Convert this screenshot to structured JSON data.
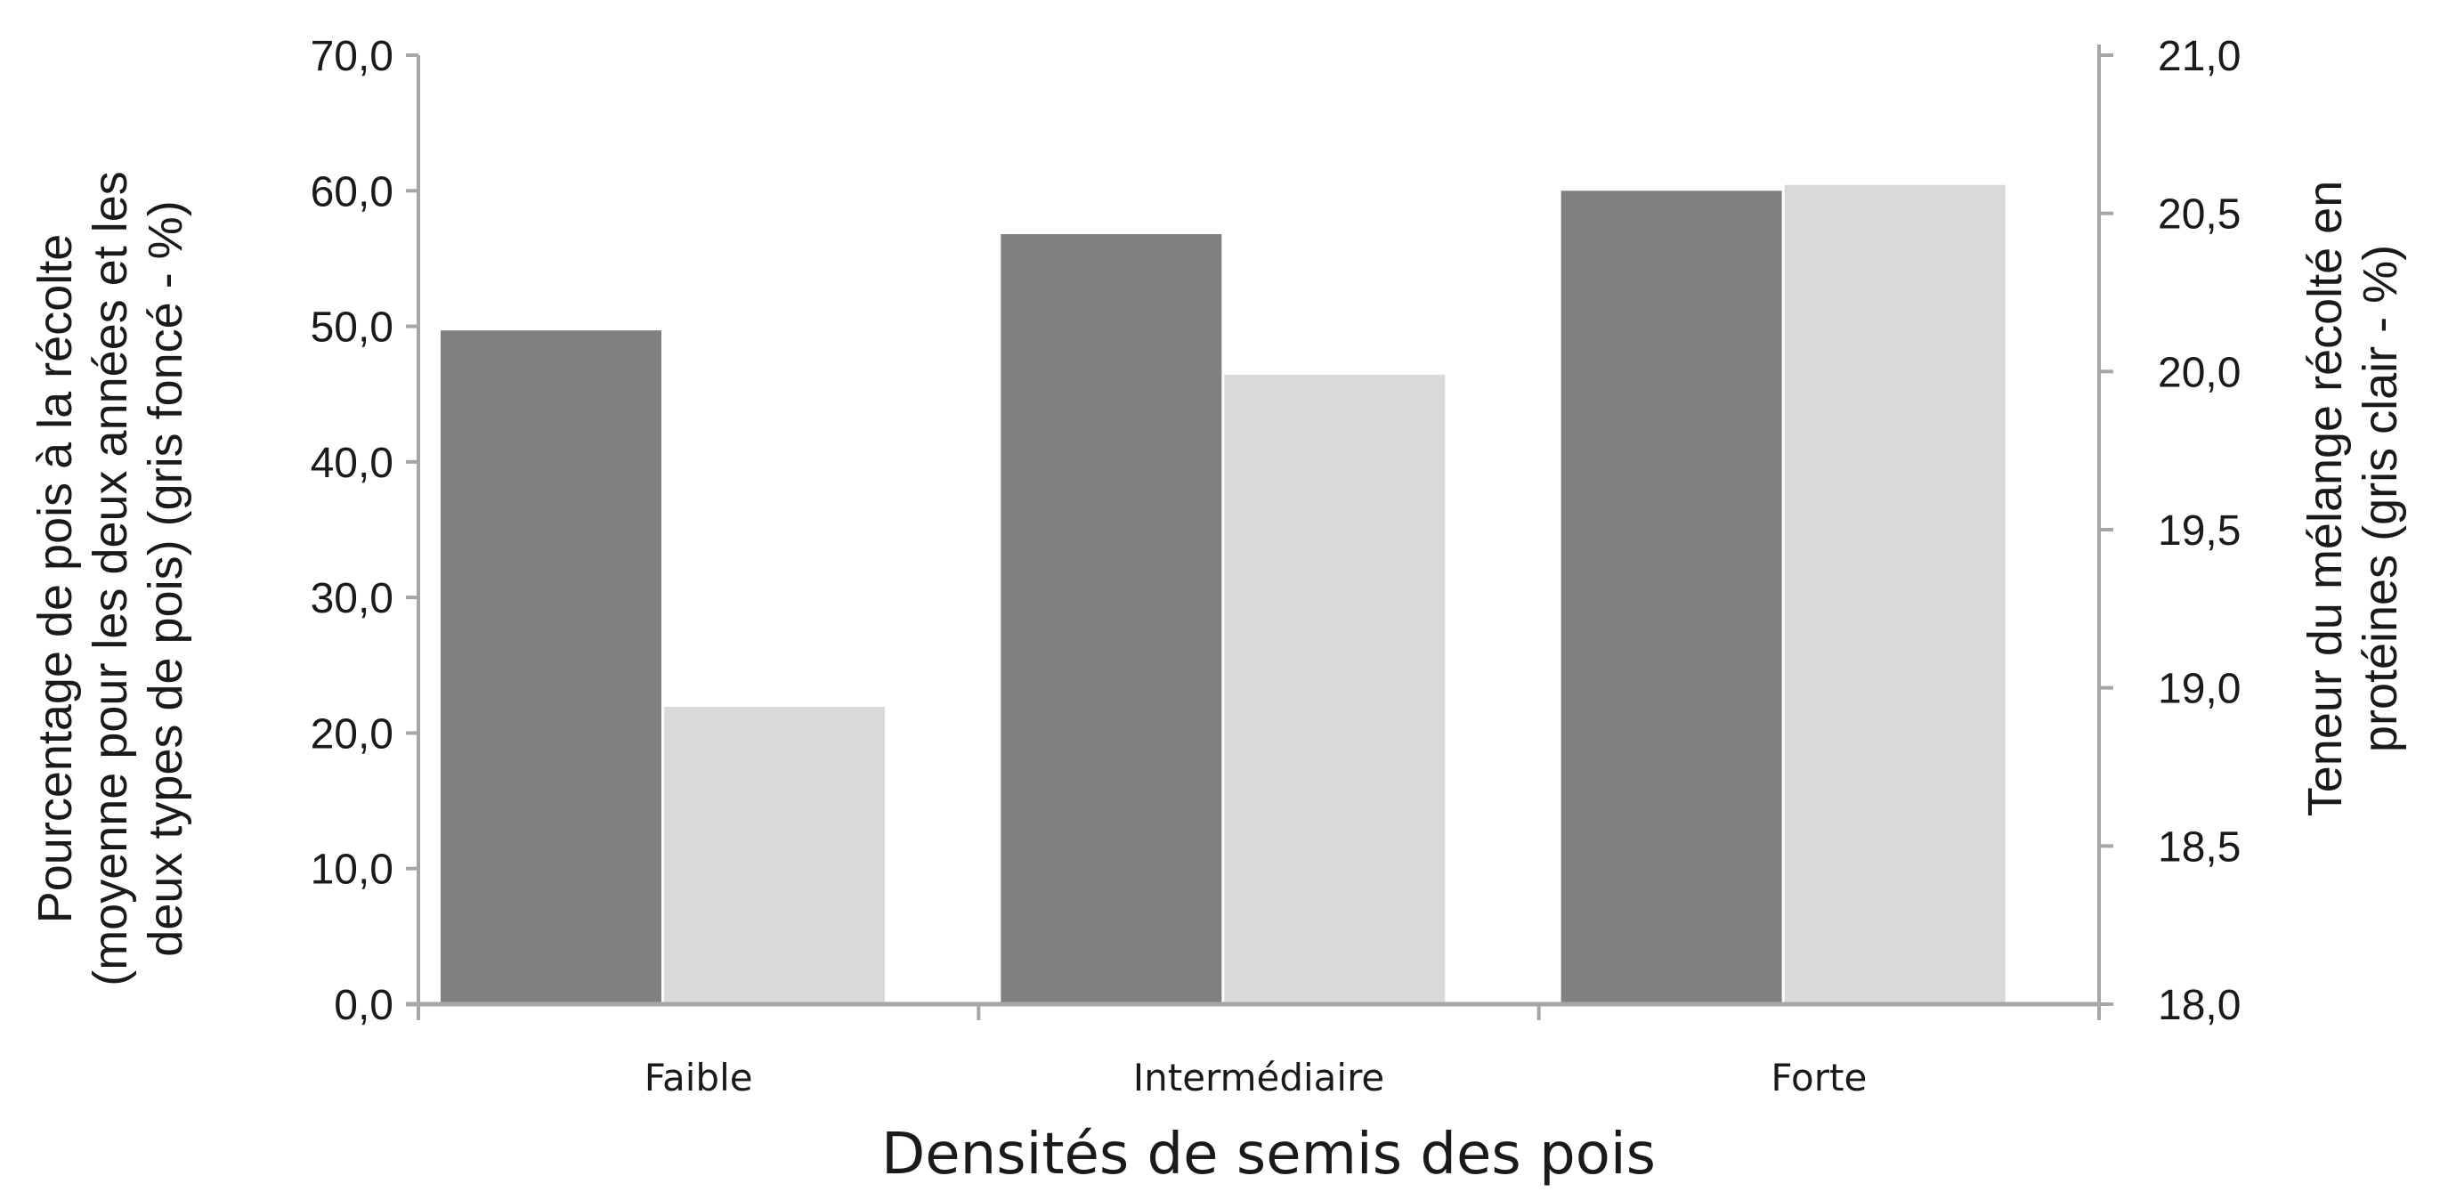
{
  "chart_data": {
    "type": "bar",
    "categories": [
      "Faible",
      "Intermédiaire",
      "Forte"
    ],
    "series": [
      {
        "values": [
          49.7,
          56.8,
          60.0
        ],
        "axis": "left",
        "color": "#808080"
      },
      {
        "values": [
          18.94,
          19.99,
          20.59
        ],
        "axis": "right",
        "color": "#d9d9d9"
      }
    ],
    "xlabel": "Densités de semis des pois",
    "ylabel_lines": [
      "Pourcentage de pois à la récolte",
      "(moyenne pour les deux années et les",
      "deux types de pois) (gris foncé - %)"
    ],
    "y2label_lines": [
      "Teneur du mélange récolté en",
      "protéines (gris clair - %)"
    ],
    "ylim": [
      0,
      70
    ],
    "y2lim": [
      18.0,
      21.0
    ],
    "yticks": [
      "0,0",
      "10,0",
      "20,0",
      "30,0",
      "40,0",
      "50,0",
      "60,0",
      "70,0"
    ],
    "y2ticks": [
      "18,0",
      "18,5",
      "19,0",
      "19,5",
      "20,0",
      "20,5",
      "21,0"
    ],
    "grid": false,
    "legend": "none",
    "axis_color": "#a6a6a6"
  }
}
